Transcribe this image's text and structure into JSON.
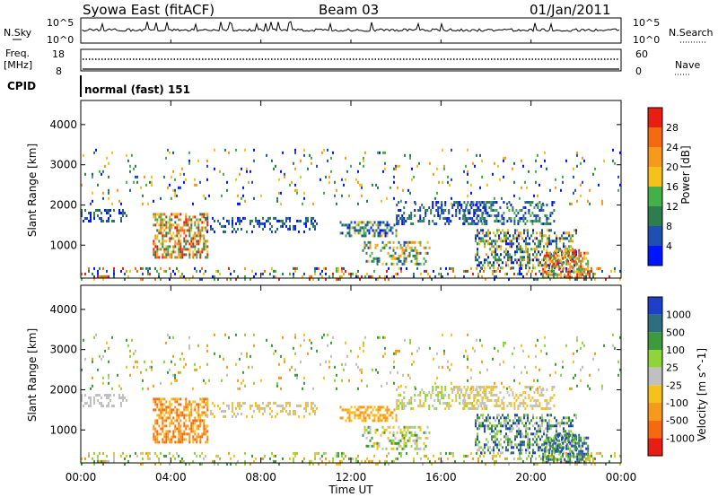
{
  "header": {
    "title": "Syowa East (fitACF)",
    "beam": "Beam 03",
    "date": "01/Jan/2011"
  },
  "cpid": {
    "label": "CPID",
    "value": "normal (fast) 151"
  },
  "chart_data": [
    {
      "type": "line",
      "name": "top-panel-nsky-nsearch",
      "left_label": "N.Sky",
      "right_label": "N.Search",
      "left_ticks": [
        "10^5",
        "10^0"
      ],
      "right_ticks": [
        "10^5",
        "10^0"
      ],
      "yscale": "log"
    },
    {
      "type": "scatter",
      "name": "freq-nave-panel",
      "left_label_1": "Freq.",
      "left_label_2": "[MHz]",
      "right_label": "Nave",
      "left_ticks": [
        18,
        8
      ],
      "right_ticks": [
        60,
        0
      ],
      "freq_mhz": 11.6,
      "nave": 0
    },
    {
      "type": "heatmap",
      "name": "power-panel",
      "ylabel": "Slant Range [km]",
      "ylim": [
        180,
        4600
      ],
      "yticks": [
        1000,
        2000,
        3000,
        4000
      ],
      "xlabel": "Time UT",
      "xticks": [
        "00:00",
        "04:00",
        "08:00",
        "12:00",
        "16:00",
        "20:00",
        "00:00"
      ],
      "colorbar_label": "Power [dB]",
      "colorbar_ticks": [
        4,
        8,
        12,
        16,
        20,
        24,
        28
      ],
      "colorbar_colors": [
        "#0015ff",
        "#1f4fb0",
        "#2e7d4f",
        "#45b04a",
        "#f5c21b",
        "#f59a1b",
        "#f56a10",
        "#e81e12"
      ]
    },
    {
      "type": "heatmap",
      "name": "velocity-panel",
      "ylabel": "Slant Range [km]",
      "ylim": [
        180,
        4600
      ],
      "yticks": [
        1000,
        2000,
        3000,
        4000
      ],
      "xlabel": "Time UT",
      "xticks": [
        "00:00",
        "04:00",
        "08:00",
        "12:00",
        "16:00",
        "20:00",
        "00:00"
      ],
      "colorbar_label": "Velocity [m s^-1]",
      "colorbar_ticks": [
        "1000",
        "500",
        "100",
        "25",
        "-25",
        "-100",
        "-500",
        "-1000"
      ],
      "colorbar_colors": [
        "#1e3fc8",
        "#2e6e7e",
        "#3d9a3d",
        "#8fd43a",
        "#c0c0c0",
        "#f5c21b",
        "#f59a1b",
        "#f56a10",
        "#e81e12"
      ]
    }
  ]
}
